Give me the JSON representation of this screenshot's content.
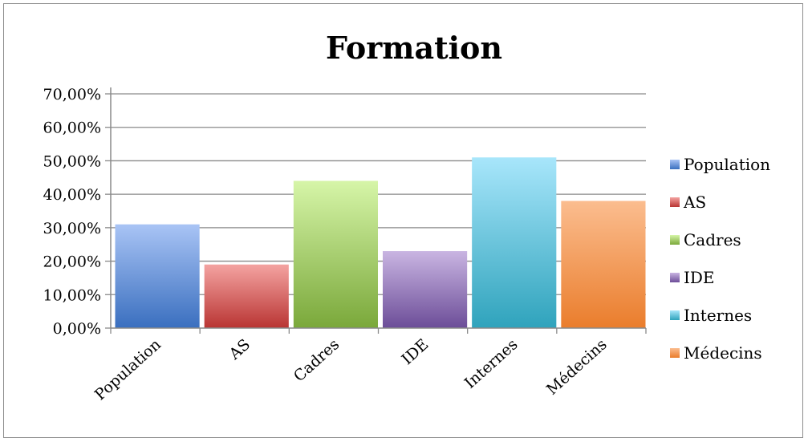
{
  "chart_data": {
    "type": "bar",
    "title": "Formation",
    "xlabel": "",
    "ylabel": "",
    "categories": [
      "Population",
      "AS",
      "Cadres",
      "IDE",
      "Internes",
      "Médecins"
    ],
    "values": [
      0.31,
      0.19,
      0.44,
      0.23,
      0.51,
      0.38
    ],
    "ylim": [
      0,
      0.7
    ],
    "yticks": [
      0,
      0.1,
      0.2,
      0.3,
      0.4,
      0.5,
      0.6,
      0.7
    ],
    "ytick_labels": [
      "0,00%",
      "10,00%",
      "20,00%",
      "30,00%",
      "40,00%",
      "50,00%",
      "60,00%",
      "70,00%"
    ],
    "grid": true,
    "legend_position": "right",
    "legend": [
      "Population",
      "AS",
      "Cadres",
      "IDE",
      "Internes",
      "Médecins"
    ],
    "colors": [
      {
        "light": "#a9c4f5",
        "dark": "#3a6fbf"
      },
      {
        "light": "#f4a3a1",
        "dark": "#b93533"
      },
      {
        "light": "#d6f5a8",
        "dark": "#7aa83a"
      },
      {
        "light": "#c9b5e2",
        "dark": "#6c4d98"
      },
      {
        "light": "#a8e6fb",
        "dark": "#2fa3bc"
      },
      {
        "light": "#fbbd8f",
        "dark": "#ea7d2c"
      }
    ]
  }
}
